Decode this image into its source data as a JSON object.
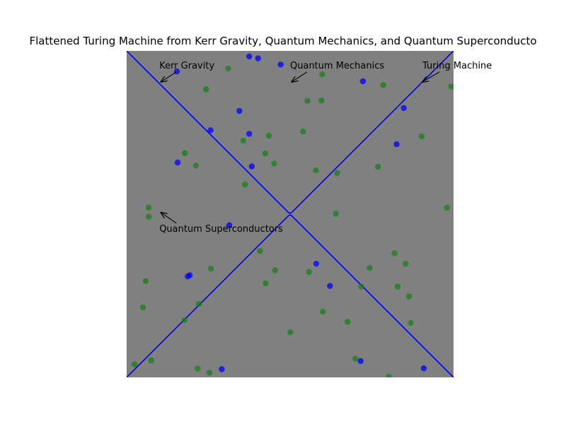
{
  "chart_data": {
    "type": "scatter",
    "title": "Flattened Turing Machine from Kerr Gravity, Quantum Mechanics, and Quantum Superconducto",
    "xlabel": "",
    "ylabel": "",
    "xlim": [
      0,
      1
    ],
    "ylim": [
      0,
      1
    ],
    "axes_visible": false,
    "background_color": "#808080",
    "curve": {
      "type": "line",
      "color": "#0000ff",
      "x": [
        0,
        0.1,
        0.2,
        0.3,
        0.4,
        0.48,
        0.495,
        0.5,
        0.505,
        0.52,
        0.6,
        0.7,
        0.8,
        0.9,
        1.0
      ],
      "upper_branch": [
        1.0,
        0.9,
        0.8,
        0.7,
        0.6,
        0.52,
        0.505,
        0.502,
        0.505,
        0.52,
        0.6,
        0.7,
        0.8,
        0.9,
        1.0
      ],
      "lower_branch": [
        0.0,
        0.1,
        0.2,
        0.3,
        0.4,
        0.48,
        0.495,
        0.498,
        0.495,
        0.48,
        0.4,
        0.3,
        0.2,
        0.1,
        0.0
      ]
    },
    "series": [
      {
        "color": "#1a7f1a",
        "points": [
          [
            0.311,
            0.946
          ],
          [
            0.243,
            0.882
          ],
          [
            0.54,
            0.753
          ],
          [
            0.357,
            0.725
          ],
          [
            0.553,
            0.847
          ],
          [
            0.598,
            0.928
          ],
          [
            0.785,
            0.895
          ],
          [
            0.993,
            0.891
          ],
          [
            0.903,
            0.738
          ],
          [
            0.435,
            0.74
          ],
          [
            0.424,
            0.686
          ],
          [
            0.178,
            0.687
          ],
          [
            0.212,
            0.649
          ],
          [
            0.451,
            0.655
          ],
          [
            0.362,
            0.591
          ],
          [
            0.579,
            0.634
          ],
          [
            0.644,
            0.626
          ],
          [
            0.769,
            0.645
          ],
          [
            0.067,
            0.52
          ],
          [
            0.068,
            0.492
          ],
          [
            0.64,
            0.501
          ],
          [
            0.98,
            0.52
          ],
          [
            0.819,
            0.38
          ],
          [
            0.854,
            0.348
          ],
          [
            0.408,
            0.387
          ],
          [
            0.258,
            0.333
          ],
          [
            0.454,
            0.328
          ],
          [
            0.558,
            0.323
          ],
          [
            0.744,
            0.335
          ],
          [
            0.058,
            0.295
          ],
          [
            0.425,
            0.288
          ],
          [
            0.717,
            0.278
          ],
          [
            0.829,
            0.278
          ],
          [
            0.864,
            0.248
          ],
          [
            0.05,
            0.214
          ],
          [
            0.221,
            0.225
          ],
          [
            0.6,
            0.201
          ],
          [
            0.177,
            0.175
          ],
          [
            0.676,
            0.17
          ],
          [
            0.869,
            0.167
          ],
          [
            0.501,
            0.138
          ],
          [
            0.7,
            0.057
          ],
          [
            0.024,
            0.04
          ],
          [
            0.075,
            0.052
          ],
          [
            0.217,
            0.027
          ],
          [
            0.254,
            0.014
          ],
          [
            0.802,
            0.002
          ],
          [
            0.596,
            0.848
          ]
        ]
      },
      {
        "color": "#0000ff",
        "points": [
          [
            0.375,
            0.983
          ],
          [
            0.402,
            0.977
          ],
          [
            0.471,
            0.958
          ],
          [
            0.154,
            0.937
          ],
          [
            0.723,
            0.907
          ],
          [
            0.345,
            0.816
          ],
          [
            0.848,
            0.825
          ],
          [
            0.257,
            0.757
          ],
          [
            0.375,
            0.746
          ],
          [
            0.826,
            0.714
          ],
          [
            0.156,
            0.658
          ],
          [
            0.383,
            0.646
          ],
          [
            0.314,
            0.466
          ],
          [
            0.58,
            0.348
          ],
          [
            0.193,
            0.313
          ],
          [
            0.187,
            0.309
          ],
          [
            0.622,
            0.28
          ],
          [
            0.716,
            0.05
          ],
          [
            0.291,
            0.025
          ],
          [
            0.909,
            0.028
          ]
        ]
      }
    ],
    "annotations": [
      {
        "text": "Kerr Gravity",
        "xy": [
          0.105,
          0.905
        ],
        "xytext": [
          0.1,
          0.955
        ]
      },
      {
        "text": "Quantum Mechanics",
        "xy": [
          0.505,
          0.905
        ],
        "xytext": [
          0.5,
          0.955
        ]
      },
      {
        "text": "Turing Machine",
        "xy": [
          0.905,
          0.905
        ],
        "xytext": [
          0.905,
          0.955
        ]
      },
      {
        "text": "Quantum Superconductors",
        "xy": [
          0.105,
          0.505
        ],
        "xytext": [
          0.1,
          0.455
        ]
      }
    ]
  }
}
